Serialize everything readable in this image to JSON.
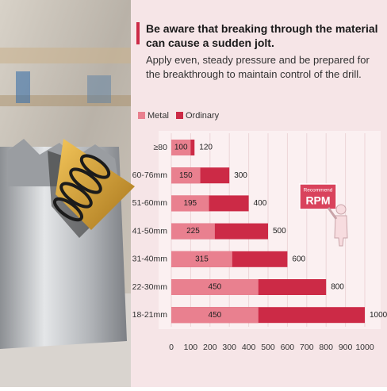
{
  "chart_data": {
    "type": "bar",
    "orientation": "horizontal",
    "title": "Be aware that breaking through the material can cause a sudden jolt.",
    "subtitle": "Apply even, steady pressure and be prepared for the breakthrough to maintain control of the drill.",
    "categories": [
      "≥80",
      "60-76mm",
      "51-60mm",
      "41-50mm",
      "31-40mm",
      "22-30mm",
      "18-21mm"
    ],
    "series": [
      {
        "name": "Metal",
        "color": "#e9808f",
        "values": [
          100,
          150,
          195,
          225,
          315,
          450,
          450
        ]
      },
      {
        "name": "Ordinary",
        "color": "#cc2a46",
        "values": [
          120,
          300,
          400,
          500,
          600,
          800,
          1000
        ]
      }
    ],
    "xlim": [
      0,
      1000
    ],
    "xticks": [
      0,
      100,
      200,
      300,
      400,
      500,
      600,
      700,
      800,
      900,
      1000
    ],
    "grid": true,
    "annotations": [
      "Recommend",
      "RPM"
    ]
  }
}
